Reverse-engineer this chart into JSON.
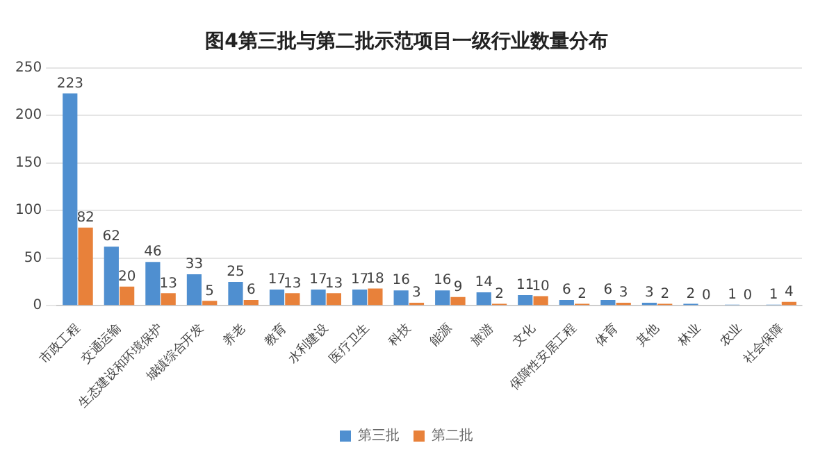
{
  "chart_data": {
    "type": "bar",
    "title": "图4第三批与第二批示范项目一级行业数量分布",
    "categories": [
      "市政工程",
      "交通运输",
      "生态建设和环境保护",
      "城镇综合开发",
      "养老",
      "教育",
      "水利建设",
      "医疗卫生",
      "科技",
      "能源",
      "旅游",
      "文化",
      "保障性安居工程",
      "体育",
      "其他",
      "林业",
      "农业",
      "社会保障"
    ],
    "series": [
      {
        "name": "第三批",
        "color": "#4f8fd0",
        "values": [
          223,
          62,
          46,
          33,
          25,
          17,
          17,
          17,
          16,
          16,
          14,
          11,
          6,
          6,
          3,
          2,
          1,
          1
        ]
      },
      {
        "name": "第二批",
        "color": "#e8813a",
        "values": [
          82,
          20,
          13,
          5,
          6,
          13,
          13,
          18,
          3,
          9,
          2,
          10,
          2,
          3,
          2,
          0,
          0,
          4
        ]
      }
    ],
    "ylim": [
      0,
      250
    ],
    "yticks": [
      0,
      50,
      100,
      150,
      200,
      250
    ],
    "grid": "y",
    "legend": "bottom",
    "data_labels": true
  }
}
